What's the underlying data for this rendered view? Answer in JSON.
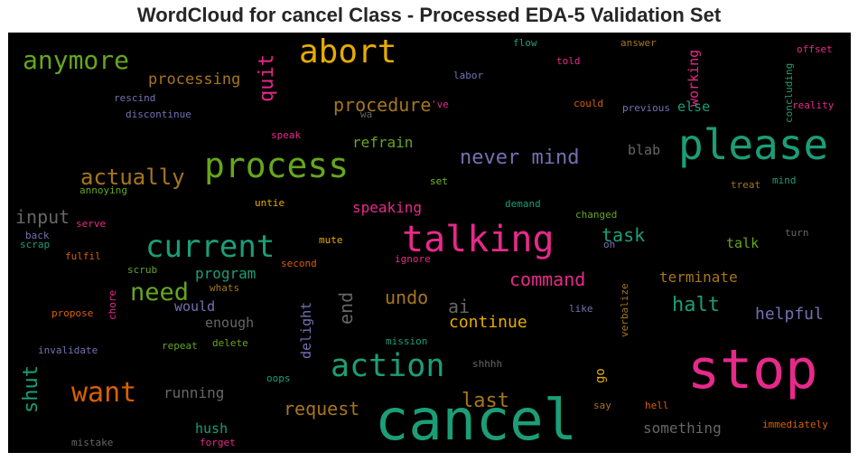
{
  "chart_data": {
    "type": "wordcloud",
    "title": "WordCloud for cancel Class - Processed EDA-5 Validation Set",
    "background": "#000000",
    "colormap": [
      "#1b9e77",
      "#d95f02",
      "#7570b3",
      "#e7298a",
      "#66a61e",
      "#e6ab02",
      "#a6761d",
      "#666666"
    ],
    "words": [
      {
        "text": "cancel",
        "color": "#1b9e77",
        "weight": 100
      },
      {
        "text": "stop",
        "color": "#e7298a",
        "weight": 98
      },
      {
        "text": "please",
        "color": "#1b9e77",
        "weight": 78
      },
      {
        "text": "talking",
        "color": "#e7298a",
        "weight": 62
      },
      {
        "text": "process",
        "color": "#66a61e",
        "weight": 60
      },
      {
        "text": "abort",
        "color": "#e6ab02",
        "weight": 58
      },
      {
        "text": "action",
        "color": "#1b9e77",
        "weight": 55
      },
      {
        "text": "current",
        "color": "#1b9e77",
        "weight": 52
      },
      {
        "text": "want",
        "color": "#d95f02",
        "weight": 46
      },
      {
        "text": "anymore",
        "color": "#66a61e",
        "weight": 42
      },
      {
        "text": "need",
        "color": "#66a61e",
        "weight": 40
      },
      {
        "text": "actually",
        "color": "#a6761d",
        "weight": 35
      },
      {
        "text": "quit",
        "color": "#e7298a",
        "weight": 32
      },
      {
        "text": "never mind",
        "color": "#7570b3",
        "weight": 30
      },
      {
        "text": "shut",
        "color": "#1b9e77",
        "weight": 30
      },
      {
        "text": "input",
        "color": "#666666",
        "weight": 29
      },
      {
        "text": "end",
        "color": "#666666",
        "weight": 28
      },
      {
        "text": "last",
        "color": "#a6761d",
        "weight": 28
      },
      {
        "text": "procedure",
        "color": "#a6761d",
        "weight": 27
      },
      {
        "text": "command",
        "color": "#e7298a",
        "weight": 27
      },
      {
        "text": "halt",
        "color": "#1b9e77",
        "weight": 27
      },
      {
        "text": "undo",
        "color": "#a6761d",
        "weight": 25
      },
      {
        "text": "ai",
        "color": "#666666",
        "weight": 25
      },
      {
        "text": "task",
        "color": "#1b9e77",
        "weight": 25
      },
      {
        "text": "request",
        "color": "#a6761d",
        "weight": 25
      },
      {
        "text": "continue",
        "color": "#e6ab02",
        "weight": 24
      },
      {
        "text": "processing",
        "color": "#a6761d",
        "weight": 24
      },
      {
        "text": "helpful",
        "color": "#7570b3",
        "weight": 23
      },
      {
        "text": "terminate",
        "color": "#a6761d",
        "weight": 22
      },
      {
        "text": "program",
        "color": "#1b9e77",
        "weight": 22
      },
      {
        "text": "running",
        "color": "#666666",
        "weight": 22
      },
      {
        "text": "something",
        "color": "#666666",
        "weight": 21
      },
      {
        "text": "refrain",
        "color": "#66a61e",
        "weight": 20
      },
      {
        "text": "speaking",
        "color": "#e7298a",
        "weight": 20
      },
      {
        "text": "delight",
        "color": "#7570b3",
        "weight": 20
      },
      {
        "text": "hush",
        "color": "#1b9e77",
        "weight": 20
      },
      {
        "text": "would",
        "color": "#7570b3",
        "weight": 20
      },
      {
        "text": "enough",
        "color": "#666666",
        "weight": 20
      },
      {
        "text": "working",
        "color": "#e7298a",
        "weight": 18
      },
      {
        "text": "else",
        "color": "#1b9e77",
        "weight": 18
      },
      {
        "text": "blab",
        "color": "#666666",
        "weight": 18
      },
      {
        "text": "talk",
        "color": "#66a61e",
        "weight": 18
      },
      {
        "text": "go",
        "color": "#e6ab02",
        "weight": 17
      },
      {
        "text": "flow",
        "color": "#1b9e77",
        "weight": 12
      },
      {
        "text": "answer",
        "color": "#a6761d",
        "weight": 12
      },
      {
        "text": "offset",
        "color": "#e7298a",
        "weight": 12
      },
      {
        "text": "told",
        "color": "#e7298a",
        "weight": 12
      },
      {
        "text": "labor",
        "color": "#7570b3",
        "weight": 12
      },
      {
        "text": "concluding",
        "color": "#1b9e77",
        "weight": 12
      },
      {
        "text": "rescind",
        "color": "#7570b3",
        "weight": 12
      },
      {
        "text": "discontinue",
        "color": "#7570b3",
        "weight": 12
      },
      {
        "text": "wa",
        "color": "#666666",
        "weight": 11
      },
      {
        "text": "'ve",
        "color": "#e7298a",
        "weight": 11
      },
      {
        "text": "could",
        "color": "#d95f02",
        "weight": 12
      },
      {
        "text": "previous",
        "color": "#7570b3",
        "weight": 12
      },
      {
        "text": "reality",
        "color": "#e7298a",
        "weight": 12
      },
      {
        "text": "speak",
        "color": "#e7298a",
        "weight": 11
      },
      {
        "text": "annoying",
        "color": "#66a61e",
        "weight": 11
      },
      {
        "text": "set",
        "color": "#66a61e",
        "weight": 11
      },
      {
        "text": "treat",
        "color": "#a6761d",
        "weight": 11
      },
      {
        "text": "mind",
        "color": "#1b9e77",
        "weight": 11
      },
      {
        "text": "untie",
        "color": "#e6ab02",
        "weight": 11
      },
      {
        "text": "demand",
        "color": "#1b9e77",
        "weight": 11
      },
      {
        "text": "serve",
        "color": "#e7298a",
        "weight": 11
      },
      {
        "text": "changed",
        "color": "#66a61e",
        "weight": 11
      },
      {
        "text": "back",
        "color": "#7570b3",
        "weight": 11
      },
      {
        "text": "scrap",
        "color": "#1b9e77",
        "weight": 11
      },
      {
        "text": "turn",
        "color": "#666666",
        "weight": 11
      },
      {
        "text": "mute",
        "color": "#e6ab02",
        "weight": 11
      },
      {
        "text": "set",
        "color": "#66a61e",
        "weight": 11
      },
      {
        "text": "oh",
        "color": "#7570b3",
        "weight": 11
      },
      {
        "text": "ignore",
        "color": "#e7298a",
        "weight": 11
      },
      {
        "text": "fulfil",
        "color": "#d95f02",
        "weight": 11
      },
      {
        "text": "second",
        "color": "#d95f02",
        "weight": 11
      },
      {
        "text": "scrub",
        "color": "#66a61e",
        "weight": 11
      },
      {
        "text": "whats",
        "color": "#a6761d",
        "weight": 11
      },
      {
        "text": "chore",
        "color": "#e7298a",
        "weight": 11
      },
      {
        "text": "propose",
        "color": "#d95f02",
        "weight": 11
      },
      {
        "text": "verbalize",
        "color": "#a6761d",
        "weight": 11
      },
      {
        "text": "like",
        "color": "#7570b3",
        "weight": 11
      },
      {
        "text": "invalidate",
        "color": "#7570b3",
        "weight": 11
      },
      {
        "text": "repeat",
        "color": "#66a61e",
        "weight": 11
      },
      {
        "text": "delete",
        "color": "#66a61e",
        "weight": 11
      },
      {
        "text": "mission",
        "color": "#1b9e77",
        "weight": 11
      },
      {
        "text": "shhhh",
        "color": "#666666",
        "weight": 11
      },
      {
        "text": "oops",
        "color": "#1b9e77",
        "weight": 11
      },
      {
        "text": "say",
        "color": "#a6761d",
        "weight": 11
      },
      {
        "text": "hell",
        "color": "#d95f02",
        "weight": 11
      },
      {
        "text": "immediately",
        "color": "#d95f02",
        "weight": 11
      },
      {
        "text": "mistake",
        "color": "#666666",
        "weight": 11
      },
      {
        "text": "forget",
        "color": "#e7298a",
        "weight": 11
      }
    ]
  }
}
